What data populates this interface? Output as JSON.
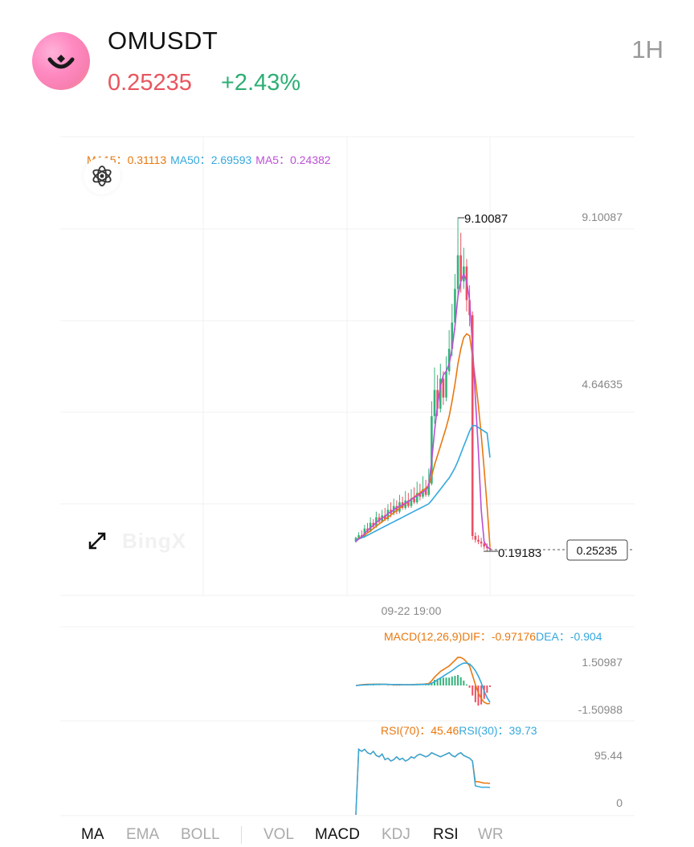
{
  "header": {
    "symbol": "OMUSDT",
    "price": "0.25235",
    "change": "+2.43%",
    "interval": "1H",
    "logo_icon": "bingx-om-logo"
  },
  "colors": {
    "price_down": "#e8565e",
    "price_up": "#2eae74",
    "ma15": "#e9780f",
    "ma50": "#35a8dd",
    "ma5": "#bd4fd6",
    "candle_up": "#34b37a",
    "candle_down": "#ec4f63"
  },
  "legend": {
    "ma15_label": "MA15：",
    "ma15_value": "0.31113",
    "ma50_label": "MA50：",
    "ma50_value": "2.69593",
    "ma5_label": "MA5：",
    "ma5_value": "0.24382"
  },
  "macd": {
    "label": "MACD(12,26,9)",
    "dif_label": "DIF：",
    "dif_value": "-0.97176",
    "dea_label": "DEA：",
    "dea_value": "-0.904",
    "y_max": "1.50987",
    "y_min": "-1.50988"
  },
  "rsi": {
    "rsi70_label": "RSI(70)：",
    "rsi70_value": "45.46",
    "rsi30_label": "RSI(30)：",
    "rsi30_value": "39.73",
    "y_max": "95.44",
    "y_min": "0"
  },
  "watermark": "BingX",
  "tabs": [
    {
      "label": "MA",
      "active": true
    },
    {
      "label": "EMA",
      "active": false
    },
    {
      "label": "BOLL",
      "active": false
    },
    {
      "label": "VOL",
      "active": false
    },
    {
      "label": "MACD",
      "active": true
    },
    {
      "label": "KDJ",
      "active": false
    },
    {
      "label": "RSI",
      "active": true
    },
    {
      "label": "WR",
      "active": false
    }
  ],
  "chart_data": {
    "type": "candlestick",
    "symbol": "OMUSDT",
    "interval": "1H",
    "x_label_tick": "09-22 19:00",
    "y_ticks": [
      "9.10087",
      "4.64635"
    ],
    "high_marker": "9.10087",
    "low_marker": "0.19183",
    "current_price": "0.25235",
    "ylim": [
      0.19183,
      9.10087
    ],
    "candles_ohlc": [
      [
        0.45,
        0.55,
        0.42,
        0.58
      ],
      [
        0.55,
        0.62,
        0.5,
        0.7
      ],
      [
        0.62,
        0.58,
        0.55,
        0.75
      ],
      [
        0.58,
        0.8,
        0.55,
        0.9
      ],
      [
        0.8,
        0.72,
        0.68,
        0.95
      ],
      [
        0.72,
        0.95,
        0.7,
        1.1
      ],
      [
        0.95,
        0.85,
        0.8,
        1.05
      ],
      [
        0.85,
        1.1,
        0.82,
        1.25
      ],
      [
        1.1,
        0.98,
        0.92,
        1.2
      ],
      [
        0.98,
        1.15,
        0.95,
        1.3
      ],
      [
        1.15,
        1.05,
        1.0,
        1.35
      ],
      [
        1.05,
        1.3,
        1.0,
        1.45
      ],
      [
        1.3,
        1.2,
        1.1,
        1.5
      ],
      [
        1.2,
        1.4,
        1.15,
        1.6
      ],
      [
        1.4,
        1.25,
        1.18,
        1.55
      ],
      [
        1.25,
        1.5,
        1.2,
        1.7
      ],
      [
        1.5,
        1.35,
        1.3,
        1.65
      ],
      [
        1.35,
        1.55,
        1.3,
        1.8
      ],
      [
        1.55,
        1.4,
        1.35,
        1.75
      ],
      [
        1.4,
        1.6,
        1.35,
        1.85
      ],
      [
        1.6,
        1.5,
        1.45,
        1.9
      ],
      [
        1.5,
        1.75,
        1.45,
        2.05
      ],
      [
        1.75,
        1.65,
        1.55,
        2.0
      ],
      [
        1.65,
        1.85,
        1.6,
        2.2
      ],
      [
        1.85,
        1.7,
        1.65,
        2.1
      ],
      [
        1.7,
        2.0,
        1.65,
        2.4
      ],
      [
        2.0,
        3.8,
        1.95,
        4.2
      ],
      [
        3.8,
        4.5,
        3.6,
        5.1
      ],
      [
        4.5,
        4.0,
        3.8,
        4.9
      ],
      [
        4.0,
        4.8,
        3.9,
        5.2
      ],
      [
        4.8,
        4.3,
        4.1,
        5.0
      ],
      [
        4.3,
        5.0,
        4.2,
        5.4
      ],
      [
        5.0,
        5.6,
        4.9,
        6.1
      ],
      [
        5.6,
        6.3,
        5.4,
        6.8
      ],
      [
        6.3,
        7.2,
        6.1,
        7.6
      ],
      [
        7.2,
        8.1,
        7.0,
        9.10087
      ],
      [
        8.1,
        7.4,
        7.1,
        8.7
      ],
      [
        7.4,
        7.8,
        7.2,
        8.3
      ],
      [
        7.8,
        6.9,
        6.6,
        8.0
      ],
      [
        6.9,
        6.5,
        6.2,
        7.3
      ],
      [
        6.5,
        0.6,
        0.5,
        6.6
      ],
      [
        0.6,
        0.5,
        0.42,
        0.7
      ],
      [
        0.5,
        0.45,
        0.38,
        0.62
      ],
      [
        0.45,
        0.4,
        0.3,
        0.55
      ],
      [
        0.4,
        0.32,
        0.24,
        0.48
      ],
      [
        0.32,
        0.28,
        0.2,
        0.4
      ],
      [
        0.28,
        0.25235,
        0.19183,
        0.35
      ]
    ],
    "series": [
      {
        "name": "MA15",
        "values": [
          0.5,
          0.54,
          0.58,
          0.62,
          0.68,
          0.74,
          0.8,
          0.86,
          0.92,
          0.98,
          1.04,
          1.1,
          1.16,
          1.22,
          1.28,
          1.34,
          1.4,
          1.46,
          1.52,
          1.58,
          1.64,
          1.7,
          1.76,
          1.82,
          1.88,
          1.95,
          2.2,
          2.5,
          2.75,
          3.0,
          3.25,
          3.5,
          3.8,
          4.2,
          4.65,
          5.2,
          5.6,
          5.9,
          6.0,
          5.95,
          5.4,
          4.8,
          4.1,
          3.3,
          2.4,
          1.4,
          0.31113
        ]
      },
      {
        "name": "MA50",
        "values": [
          0.5,
          0.52,
          0.55,
          0.58,
          0.62,
          0.66,
          0.7,
          0.74,
          0.78,
          0.82,
          0.86,
          0.9,
          0.94,
          0.98,
          1.02,
          1.06,
          1.1,
          1.14,
          1.18,
          1.22,
          1.26,
          1.3,
          1.34,
          1.38,
          1.42,
          1.46,
          1.55,
          1.65,
          1.75,
          1.85,
          1.95,
          2.05,
          2.15,
          2.28,
          2.42,
          2.6,
          2.8,
          3.0,
          3.2,
          3.4,
          3.55,
          3.55,
          3.5,
          3.45,
          3.4,
          3.35,
          2.69593
        ]
      },
      {
        "name": "MA5",
        "values": [
          0.45,
          0.52,
          0.58,
          0.66,
          0.75,
          0.82,
          0.88,
          0.96,
          1.02,
          1.08,
          1.12,
          1.2,
          1.24,
          1.3,
          1.35,
          1.4,
          1.42,
          1.48,
          1.52,
          1.58,
          1.62,
          1.68,
          1.72,
          1.78,
          1.82,
          1.95,
          2.6,
          3.4,
          4.1,
          4.6,
          4.9,
          5.0,
          5.2,
          5.6,
          6.2,
          7.0,
          7.4,
          7.6,
          7.4,
          6.9,
          5.7,
          4.3,
          2.9,
          1.3,
          0.45,
          0.32,
          0.24382
        ]
      }
    ],
    "macd": {
      "dif": [
        0,
        0.02,
        0.04,
        0.05,
        0.06,
        0.06,
        0.07,
        0.07,
        0.07,
        0.06,
        0.06,
        0.05,
        0.05,
        0.04,
        0.04,
        0.04,
        0.04,
        0.04,
        0.04,
        0.04,
        0.05,
        0.06,
        0.06,
        0.07,
        0.08,
        0.1,
        0.25,
        0.45,
        0.6,
        0.75,
        0.85,
        0.95,
        1.05,
        1.2,
        1.35,
        1.50987,
        1.5,
        1.42,
        1.25,
        1.05,
        0.55,
        0.05,
        -0.4,
        -0.7,
        -0.9,
        -0.98,
        -0.97176
      ],
      "dea": [
        0,
        0.01,
        0.02,
        0.03,
        0.04,
        0.05,
        0.05,
        0.06,
        0.06,
        0.06,
        0.06,
        0.06,
        0.05,
        0.05,
        0.05,
        0.05,
        0.04,
        0.04,
        0.04,
        0.04,
        0.04,
        0.05,
        0.05,
        0.06,
        0.06,
        0.07,
        0.12,
        0.2,
        0.3,
        0.4,
        0.5,
        0.6,
        0.7,
        0.8,
        0.92,
        1.04,
        1.13,
        1.2,
        1.2,
        1.15,
        1.0,
        0.8,
        0.5,
        0.15,
        -0.3,
        -0.65,
        -0.904
      ],
      "ylim": [
        -1.50988,
        1.50987
      ]
    },
    "rsi": {
      "rsi70": [
        0,
        95,
        92,
        95,
        90,
        88,
        92,
        86,
        84,
        88,
        80,
        82,
        78,
        80,
        84,
        80,
        82,
        78,
        80,
        84,
        82,
        86,
        88,
        86,
        84,
        86,
        90,
        88,
        86,
        84,
        86,
        88,
        90,
        86,
        84,
        88,
        90,
        86,
        84,
        82,
        78,
        48,
        48,
        47,
        46,
        46,
        45.46
      ],
      "rsi30": [
        0,
        95,
        92,
        95,
        90,
        88,
        92,
        86,
        84,
        88,
        80,
        82,
        78,
        80,
        84,
        80,
        82,
        78,
        80,
        84,
        82,
        86,
        88,
        86,
        84,
        86,
        90,
        88,
        86,
        84,
        86,
        88,
        90,
        86,
        84,
        88,
        90,
        86,
        84,
        82,
        78,
        42,
        41,
        40,
        40,
        40,
        39.73
      ],
      "ylim": [
        0,
        95.44
      ]
    }
  }
}
